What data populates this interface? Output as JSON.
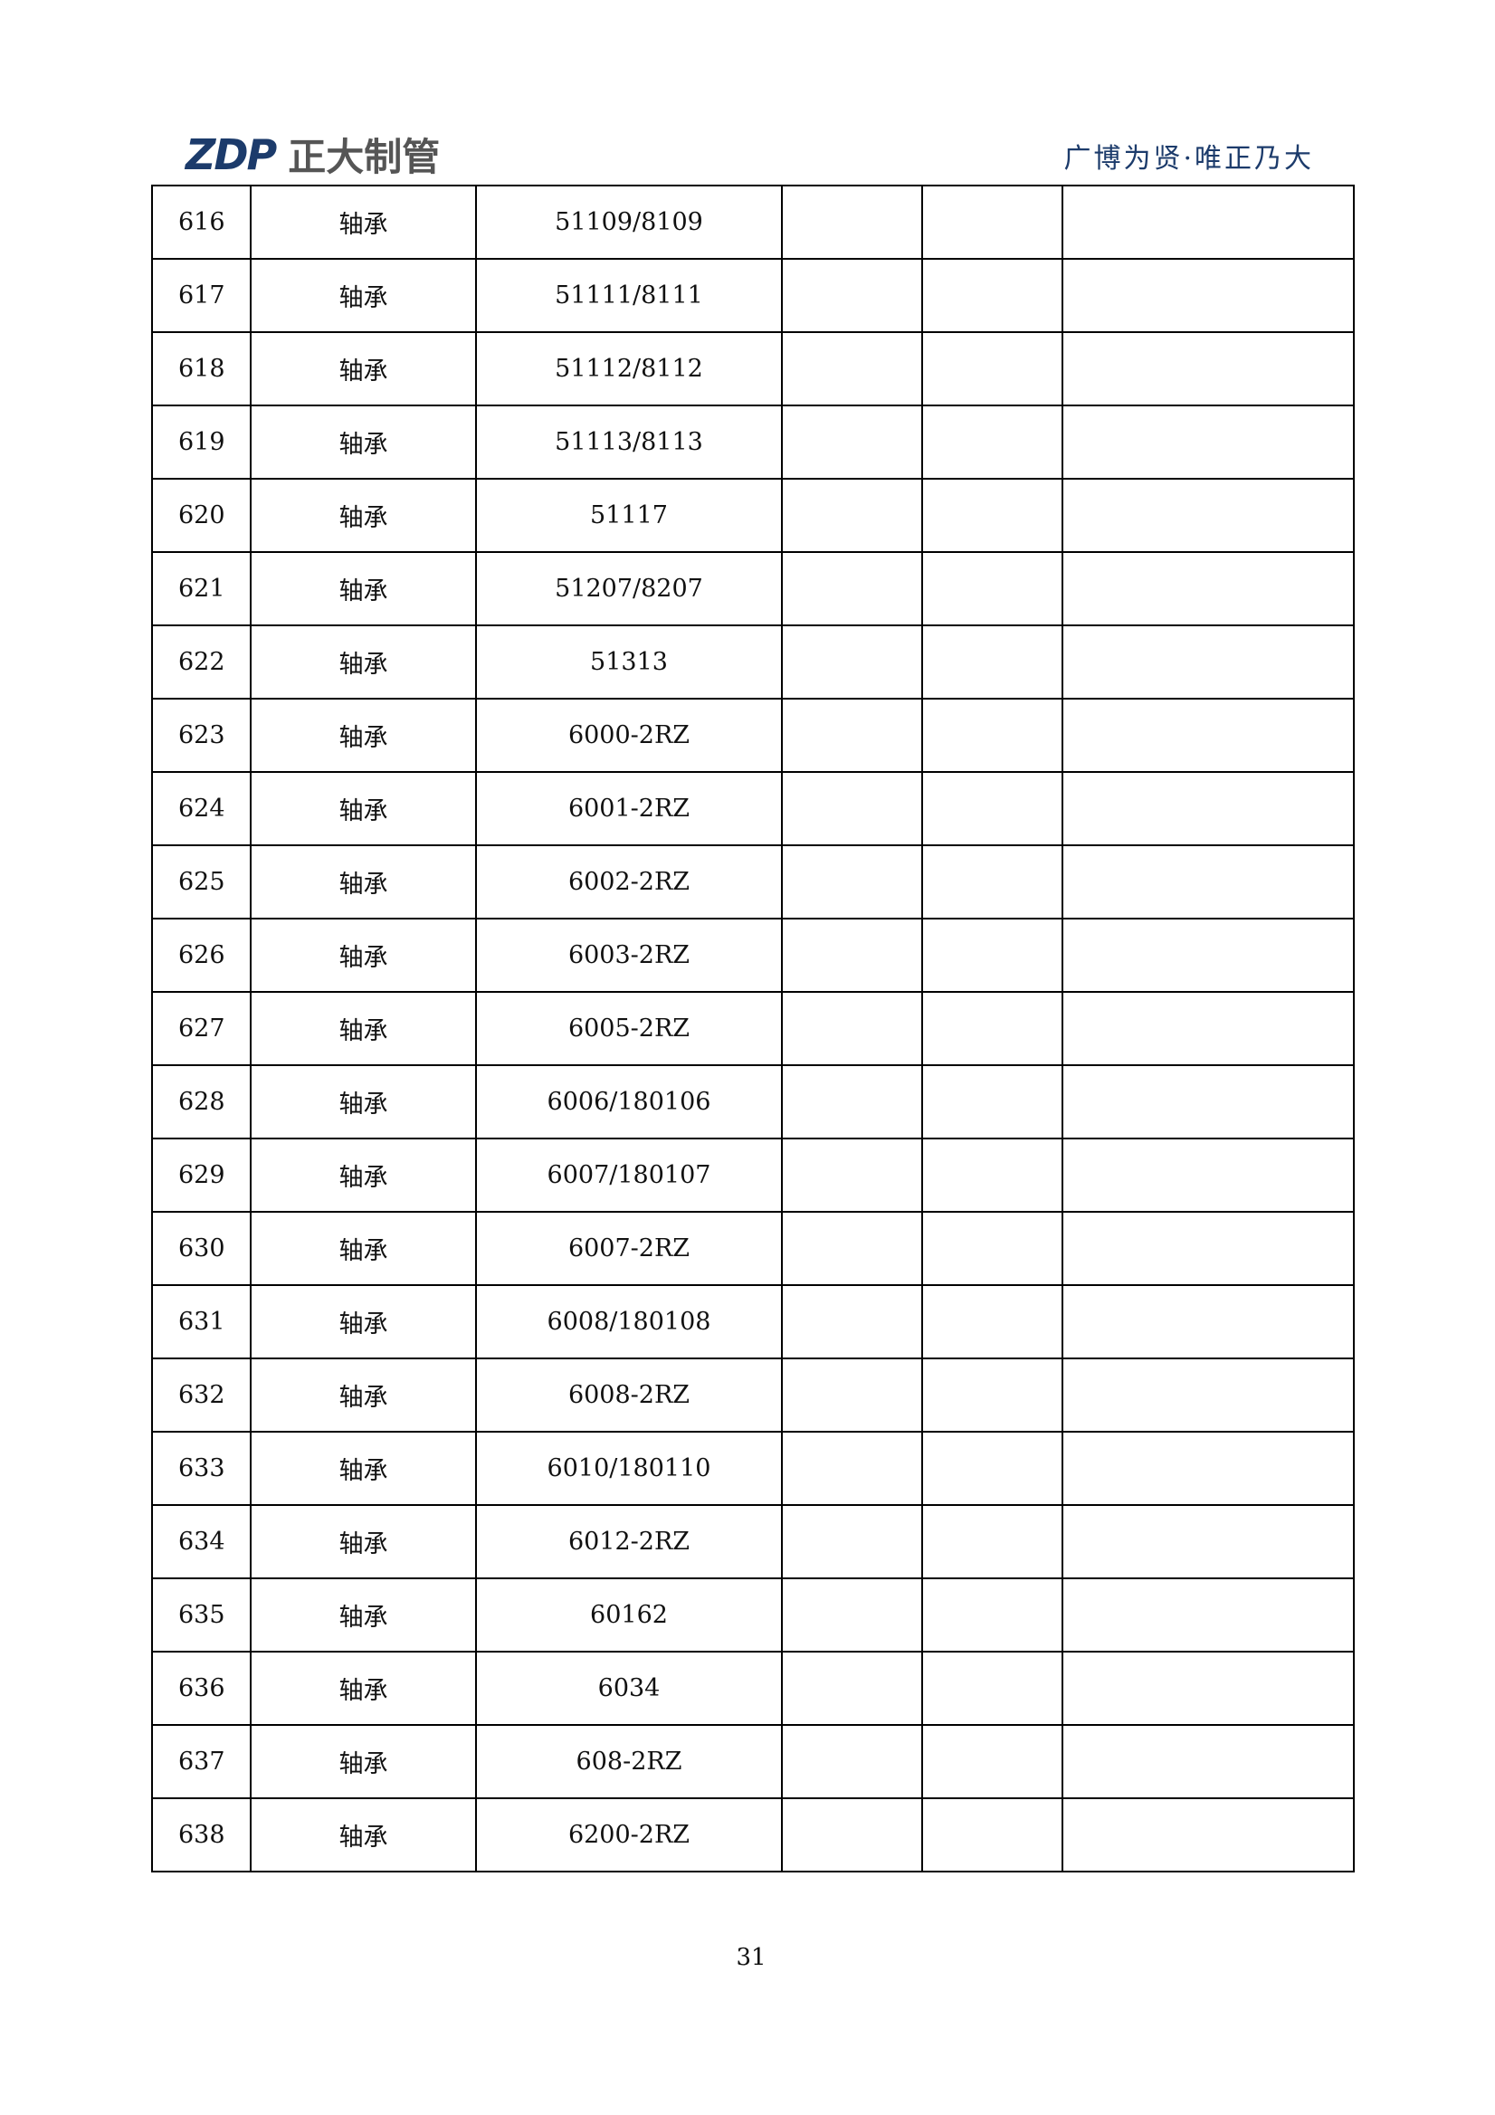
{
  "header": {
    "logo_mark": "ZDP",
    "logo_name": "正大制管",
    "slogan": "广博为贤·唯正乃大"
  },
  "rows": [
    {
      "no": "616",
      "name": "轴承",
      "model": "51109/8109"
    },
    {
      "no": "617",
      "name": "轴承",
      "model": "51111/8111"
    },
    {
      "no": "618",
      "name": "轴承",
      "model": "51112/8112"
    },
    {
      "no": "619",
      "name": "轴承",
      "model": "51113/8113"
    },
    {
      "no": "620",
      "name": "轴承",
      "model": "51117"
    },
    {
      "no": "621",
      "name": "轴承",
      "model": "51207/8207"
    },
    {
      "no": "622",
      "name": "轴承",
      "model": "51313"
    },
    {
      "no": "623",
      "name": "轴承",
      "model": "6000-2RZ"
    },
    {
      "no": "624",
      "name": "轴承",
      "model": "6001-2RZ"
    },
    {
      "no": "625",
      "name": "轴承",
      "model": "6002-2RZ"
    },
    {
      "no": "626",
      "name": "轴承",
      "model": "6003-2RZ"
    },
    {
      "no": "627",
      "name": "轴承",
      "model": "6005-2RZ"
    },
    {
      "no": "628",
      "name": "轴承",
      "model": "6006/180106"
    },
    {
      "no": "629",
      "name": "轴承",
      "model": "6007/180107"
    },
    {
      "no": "630",
      "name": "轴承",
      "model": "6007-2RZ"
    },
    {
      "no": "631",
      "name": "轴承",
      "model": "6008/180108"
    },
    {
      "no": "632",
      "name": "轴承",
      "model": "6008-2RZ"
    },
    {
      "no": "633",
      "name": "轴承",
      "model": "6010/180110"
    },
    {
      "no": "634",
      "name": "轴承",
      "model": "6012-2RZ"
    },
    {
      "no": "635",
      "name": "轴承",
      "model": "60162"
    },
    {
      "no": "636",
      "name": "轴承",
      "model": "6034"
    },
    {
      "no": "637",
      "name": "轴承",
      "model": "608-2RZ"
    },
    {
      "no": "638",
      "name": "轴承",
      "model": "6200-2RZ"
    }
  ],
  "footer": {
    "page_number": "31"
  }
}
